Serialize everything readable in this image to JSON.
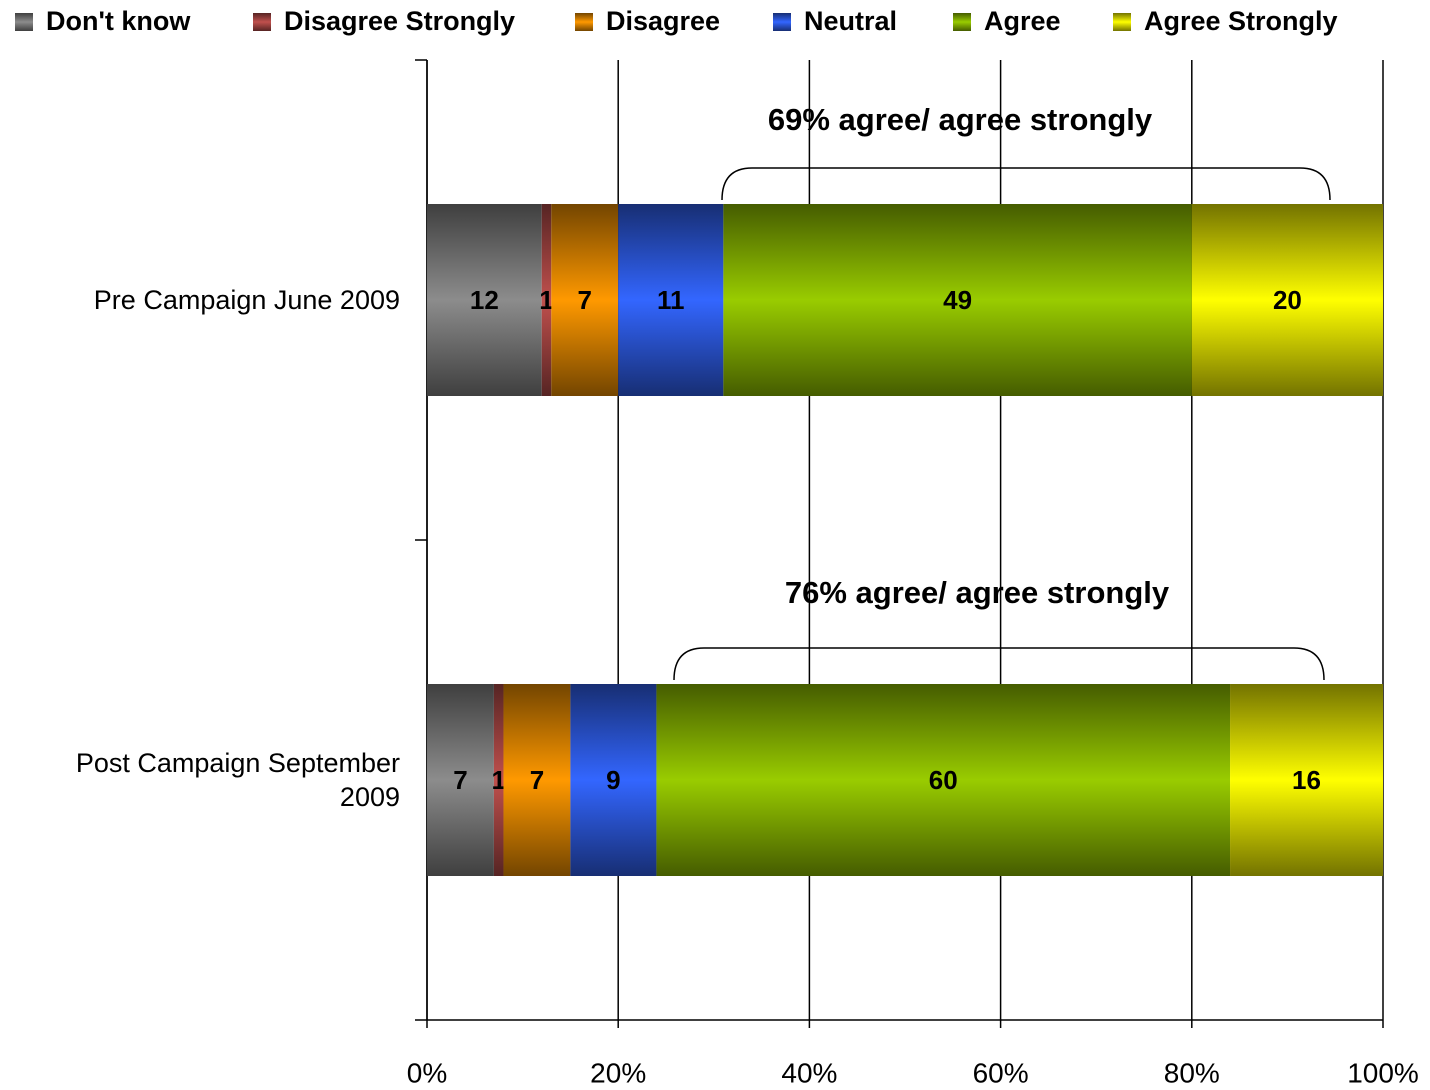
{
  "chart_data": {
    "type": "stacked_barh",
    "categories": [
      "Pre Campaign June 2009",
      "Post Campaign September 2009"
    ],
    "series": [
      {
        "name": "Don't know",
        "color": "#8c8c8c",
        "values": [
          12,
          7
        ]
      },
      {
        "name": "Disagree Strongly",
        "color": "#c0504d",
        "values": [
          1,
          1
        ]
      },
      {
        "name": "Disagree",
        "color": "#ff9900",
        "values": [
          7,
          7
        ]
      },
      {
        "name": "Neutral",
        "color": "#3366ff",
        "values": [
          11,
          9
        ]
      },
      {
        "name": "Agree",
        "color": "#99cc00",
        "values": [
          49,
          60
        ]
      },
      {
        "name": "Agree Strongly",
        "color": "#ffff00",
        "values": [
          20,
          16
        ]
      }
    ],
    "xlim": [
      0,
      100
    ],
    "xticks": [
      {
        "value": 0,
        "label": "0%"
      },
      {
        "value": 20,
        "label": "20%"
      },
      {
        "value": 40,
        "label": "40%"
      },
      {
        "value": 60,
        "label": "60%"
      },
      {
        "value": 80,
        "label": "80%"
      },
      {
        "value": 100,
        "label": "100%"
      }
    ],
    "grid": true,
    "legend": "top",
    "annotations": [
      "69% agree/ agree strongly",
      "76% agree/ agree strongly"
    ]
  }
}
